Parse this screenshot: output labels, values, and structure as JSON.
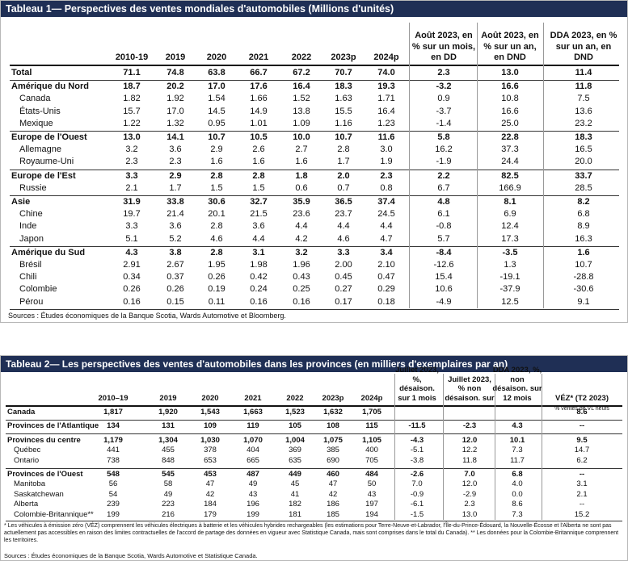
{
  "table1": {
    "title": "Tableau 1— Perspectives des ventes mondiales d'automobiles (Millions d'unités)",
    "headers": [
      "2010-19",
      "2019",
      "2020",
      "2021",
      "2022",
      "2023p",
      "2024p",
      "Août 2023, en % sur un mois, en DD",
      "Août 2023, en % sur un an, en DND",
      "DDA 2023, en % sur un an, en DND"
    ],
    "groups": [
      {
        "label": "Total",
        "cells": [
          "71.1",
          "74.8",
          "63.8",
          "66.7",
          "67.2",
          "70.7",
          "74.0",
          "2.3",
          "13.0",
          "11.4"
        ],
        "rows": []
      },
      {
        "label": "Amérique du Nord",
        "cells": [
          "18.7",
          "20.2",
          "17.0",
          "17.6",
          "16.4",
          "18.3",
          "19.3",
          "-3.2",
          "16.6",
          "11.8"
        ],
        "rows": [
          {
            "label": "Canada",
            "cells": [
              "1.82",
              "1.92",
              "1.54",
              "1.66",
              "1.52",
              "1.63",
              "1.71",
              "0.9",
              "10.8",
              "7.5"
            ]
          },
          {
            "label": "États-Unis",
            "cells": [
              "15.7",
              "17.0",
              "14.5",
              "14.9",
              "13.8",
              "15.5",
              "16.4",
              "-3.7",
              "16.6",
              "13.6"
            ]
          },
          {
            "label": "Mexique",
            "cells": [
              "1.22",
              "1.32",
              "0.95",
              "1.01",
              "1.09",
              "1.16",
              "1.23",
              "-1.4",
              "25.0",
              "23.2"
            ]
          }
        ]
      },
      {
        "label": "Europe de l'Ouest",
        "cells": [
          "13.0",
          "14.1",
          "10.7",
          "10.5",
          "10.0",
          "10.7",
          "11.6",
          "5.8",
          "22.8",
          "18.3"
        ],
        "rows": [
          {
            "label": "Allemagne",
            "cells": [
              "3.2",
              "3.6",
              "2.9",
              "2.6",
              "2.7",
              "2.8",
              "3.0",
              "16.2",
              "37.3",
              "16.5"
            ]
          },
          {
            "label": "Royaume-Uni",
            "cells": [
              "2.3",
              "2.3",
              "1.6",
              "1.6",
              "1.6",
              "1.7",
              "1.9",
              "-1.9",
              "24.4",
              "20.0"
            ]
          }
        ]
      },
      {
        "label": "Europe de l'Est",
        "cells": [
          "3.3",
          "2.9",
          "2.8",
          "2.8",
          "1.8",
          "2.0",
          "2.3",
          "2.2",
          "82.5",
          "33.7"
        ],
        "rows": [
          {
            "label": "Russie",
            "cells": [
              "2.1",
              "1.7",
              "1.5",
              "1.5",
              "0.6",
              "0.7",
              "0.8",
              "6.7",
              "166.9",
              "28.5"
            ]
          }
        ]
      },
      {
        "label": "Asie",
        "cells": [
          "31.9",
          "33.8",
          "30.6",
          "32.7",
          "35.9",
          "36.5",
          "37.4",
          "4.8",
          "8.1",
          "8.2"
        ],
        "rows": [
          {
            "label": "Chine",
            "cells": [
              "19.7",
              "21.4",
              "20.1",
              "21.5",
              "23.6",
              "23.7",
              "24.5",
              "6.1",
              "6.9",
              "6.8"
            ]
          },
          {
            "label": "Inde",
            "cells": [
              "3.3",
              "3.6",
              "2.8",
              "3.6",
              "4.4",
              "4.4",
              "4.4",
              "-0.8",
              "12.4",
              "8.9"
            ]
          },
          {
            "label": "Japon",
            "cells": [
              "5.1",
              "5.2",
              "4.6",
              "4.4",
              "4.2",
              "4.6",
              "4.7",
              "5.7",
              "17.3",
              "16.3"
            ]
          }
        ]
      },
      {
        "label": "Amérique du Sud",
        "cells": [
          "4.3",
          "3.8",
          "2.8",
          "3.1",
          "3.2",
          "3.3",
          "3.4",
          "-8.4",
          "-3.5",
          "1.6"
        ],
        "rows": [
          {
            "label": "Brésil",
            "cells": [
              "2.91",
              "2.67",
              "1.95",
              "1.98",
              "1.96",
              "2.00",
              "2.10",
              "-12.6",
              "1.3",
              "10.7"
            ]
          },
          {
            "label": "Chili",
            "cells": [
              "0.34",
              "0.37",
              "0.26",
              "0.42",
              "0.43",
              "0.45",
              "0.47",
              "15.4",
              "-19.1",
              "-28.8"
            ]
          },
          {
            "label": "Colombie",
            "cells": [
              "0.26",
              "0.26",
              "0.19",
              "0.24",
              "0.25",
              "0.27",
              "0.29",
              "10.6",
              "-37.9",
              "-30.6"
            ]
          },
          {
            "label": "Pérou",
            "cells": [
              "0.16",
              "0.15",
              "0.11",
              "0.16",
              "0.16",
              "0.17",
              "0.18",
              "-4.9",
              "12.5",
              "9.1"
            ]
          }
        ]
      }
    ],
    "sources": "Sources : Études économiques de la Banque Scotia, Wards Automotive et Bloomberg."
  },
  "table2": {
    "title": "Tableau 2— Les perspectives des ventes d'automobiles dans les provinces (en milliers d'exemplaires par an)",
    "headers": [
      "2010–19",
      "2019",
      "2020",
      "2021",
      "2022",
      "2023p",
      "2024p",
      "Juillet 2023, %, désaison. sur 1 mois",
      "Juillet 2023, % non désaison. sur",
      "DDA 2023, %, non désaison. sur 12 mois",
      "VÉZ* (T2 2023)"
    ],
    "header_note": "% ventes de VL neufs",
    "groups": [
      {
        "label": "Canada",
        "cells": [
          "1,817",
          "1,920",
          "1,543",
          "1,663",
          "1,523",
          "1,632",
          "1,705",
          null,
          null,
          null,
          "8.6"
        ],
        "rows": []
      },
      {
        "label": "Provinces de l'Atlantique",
        "cells": [
          "134",
          "131",
          "109",
          "119",
          "105",
          "108",
          "115",
          "-11.5",
          "-2.3",
          "4.3",
          "--"
        ],
        "rows": []
      },
      {
        "label": "Provinces du centre",
        "cells": [
          "1,179",
          "1,304",
          "1,030",
          "1,070",
          "1,004",
          "1,075",
          "1,105",
          "-4.3",
          "12.0",
          "10.1",
          "9.5"
        ],
        "rows": [
          {
            "label": "Québec",
            "cells": [
              "441",
              "455",
              "378",
              "404",
              "369",
              "385",
              "400",
              "-5.1",
              "12.2",
              "7.3",
              "14.7"
            ]
          },
          {
            "label": "Ontario",
            "cells": [
              "738",
              "848",
              "653",
              "665",
              "635",
              "690",
              "705",
              "-3.8",
              "11.8",
              "11.7",
              "6.2"
            ]
          }
        ]
      },
      {
        "label": "Provinces de l'Ouest",
        "cells": [
          "548",
          "545",
          "453",
          "487",
          "449",
          "460",
          "484",
          "-2.6",
          "7.0",
          "6.8",
          "--"
        ],
        "rows": [
          {
            "label": "Manitoba",
            "cells": [
              "56",
              "58",
              "47",
              "49",
              "45",
              "47",
              "50",
              "7.0",
              "12.0",
              "4.0",
              "3.1"
            ]
          },
          {
            "label": "Saskatchewan",
            "cells": [
              "54",
              "49",
              "42",
              "43",
              "41",
              "42",
              "43",
              "-0.9",
              "-2.9",
              "0.0",
              "2.1"
            ]
          },
          {
            "label": "Alberta",
            "cells": [
              "239",
              "223",
              "184",
              "196",
              "182",
              "186",
              "197",
              "-6.1",
              "2.3",
              "8.6",
              "--"
            ]
          },
          {
            "label": "Colombie-Britannique**",
            "cells": [
              "199",
              "216",
              "179",
              "199",
              "181",
              "185",
              "194",
              "-1.5",
              "13.0",
              "7.3",
              "15.2"
            ]
          }
        ]
      }
    ],
    "notes": "* Les véhicules à émission zéro (VÉZ) comprennent les véhicules électriques à batterie et les véhicules hybrides rechargeables (les estimations pour Terre-Neuve-et-Labrador, l'Île-du-Prince-Édouard, la Nouvelle-Écosse et l'Alberta ne sont pas actuellement pas accessibles en raison des limites contractuelles de l'accord de partage des données en vigueur avec Statistique Canada, mais sont comprises dans le total du Canada). ** Les données pour la Colombie-Britannique comprennent les territoires.",
    "sources": "Sources : Études économiques de la Banque Scotia, Wards Automotive et Statistique Canada."
  }
}
